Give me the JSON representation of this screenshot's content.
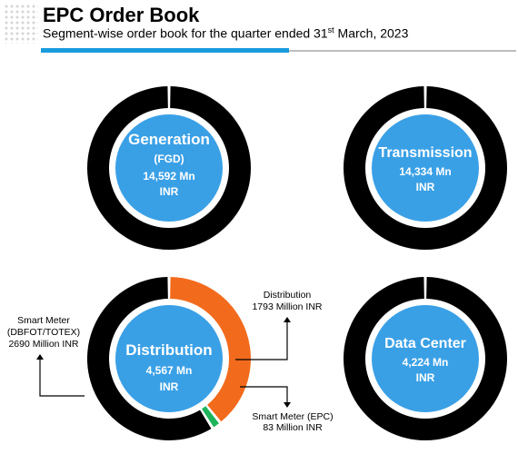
{
  "header": {
    "title": "EPC Order Book",
    "subtitle_main": "Segment-wise order book for the quarter ended 31",
    "subtitle_sup": "st",
    "subtitle_end": " March, 2023",
    "accent_color": "#1a9bdc"
  },
  "chart_data": [
    {
      "type": "pie",
      "segment": "Generation",
      "center_lines": [
        "Generation",
        "(FGD)",
        "14,592 Mn",
        "INR"
      ],
      "slices": [
        {
          "value": 14592,
          "color": "#000000"
        }
      ]
    },
    {
      "type": "pie",
      "segment": "Transmission",
      "center_lines": [
        "Transmission",
        "14,334 Mn",
        "INR"
      ],
      "slices": [
        {
          "value": 14334,
          "color": "#000000"
        }
      ]
    },
    {
      "type": "pie",
      "segment": "Distribution",
      "center_lines": [
        "Distribution",
        "4,567 Mn",
        "INR"
      ],
      "slices": [
        {
          "label_lines": [
            "Distribution",
            "1793 Million INR"
          ],
          "value": 1793,
          "color": "#f26b1d"
        },
        {
          "label_lines": [
            "Smart Meter (EPC)",
            "83 Million INR"
          ],
          "value": 83,
          "color": "#1db45a"
        },
        {
          "label_lines": [
            "Smart Meter",
            "(DBFOT/TOTEX)",
            "2690 Million INR"
          ],
          "value": 2690,
          "color": "#000000"
        }
      ]
    },
    {
      "type": "pie",
      "segment": "Data Center",
      "center_lines": [
        "Data Center",
        "4,224 Mn",
        "INR"
      ],
      "slices": [
        {
          "value": 4224,
          "color": "#000000"
        }
      ]
    }
  ],
  "colors": {
    "center_fill": "#3aa0e6",
    "ring_gap": "#ffffff"
  }
}
